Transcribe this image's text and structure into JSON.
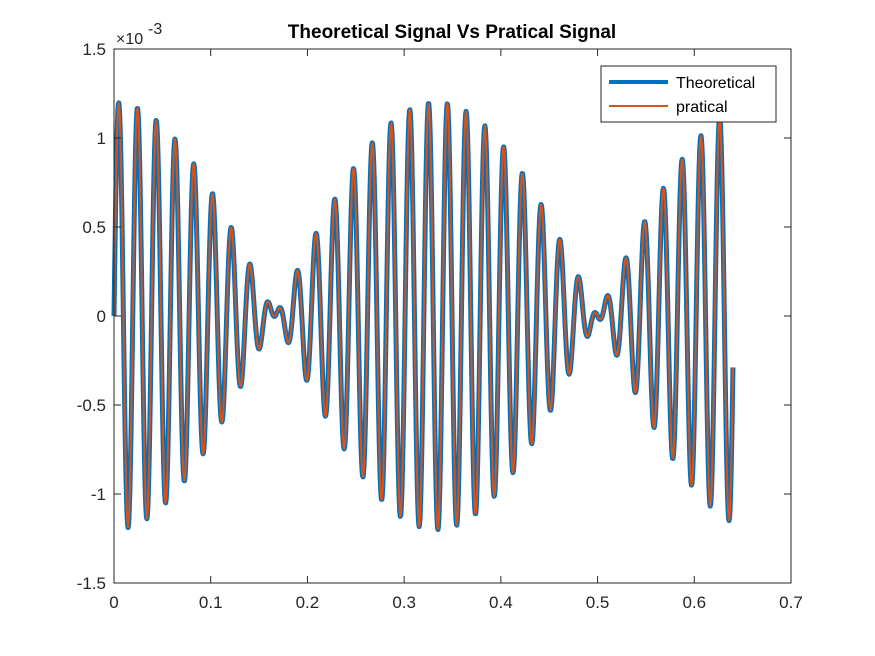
{
  "chart_data": {
    "type": "line",
    "title": "Theoretical Signal Vs Pratical Signal",
    "xlabel": "",
    "ylabel": "",
    "xlim": [
      0,
      0.7
    ],
    "ylim": [
      -0.0015,
      0.0015
    ],
    "x_ticks": [
      0,
      0.1,
      0.2,
      0.3,
      0.4,
      0.5,
      0.6,
      0.7
    ],
    "x_tick_labels": [
      "0",
      "0.1",
      "0.2",
      "0.3",
      "0.4",
      "0.5",
      "0.6",
      "0.7"
    ],
    "y_ticks": [
      -1.5,
      -1,
      -0.5,
      0,
      0.5,
      1,
      1.5
    ],
    "y_tick_labels": [
      "-1.5",
      "-1",
      "-0.5",
      "0",
      "0.5",
      "1",
      "1.5"
    ],
    "y_exponent_base": "×10",
    "y_exponent": "-3",
    "grid": false,
    "legend_position": "top-right",
    "x_end": 0.64,
    "sample_rate": 2000,
    "series": [
      {
        "name": "Theoretical",
        "color": "#0072BD",
        "line_width": "thick",
        "components": [
          {
            "amplitude": 0.0006,
            "frequency_hz": 50
          },
          {
            "amplitude": 0.0006,
            "frequency_hz": 53
          }
        ]
      },
      {
        "name": "pratical",
        "color": "#D95319",
        "line_width": "thin",
        "components": [
          {
            "amplitude": 0.0006,
            "frequency_hz": 50
          },
          {
            "amplitude": 0.0006,
            "frequency_hz": 53
          }
        ]
      }
    ]
  }
}
